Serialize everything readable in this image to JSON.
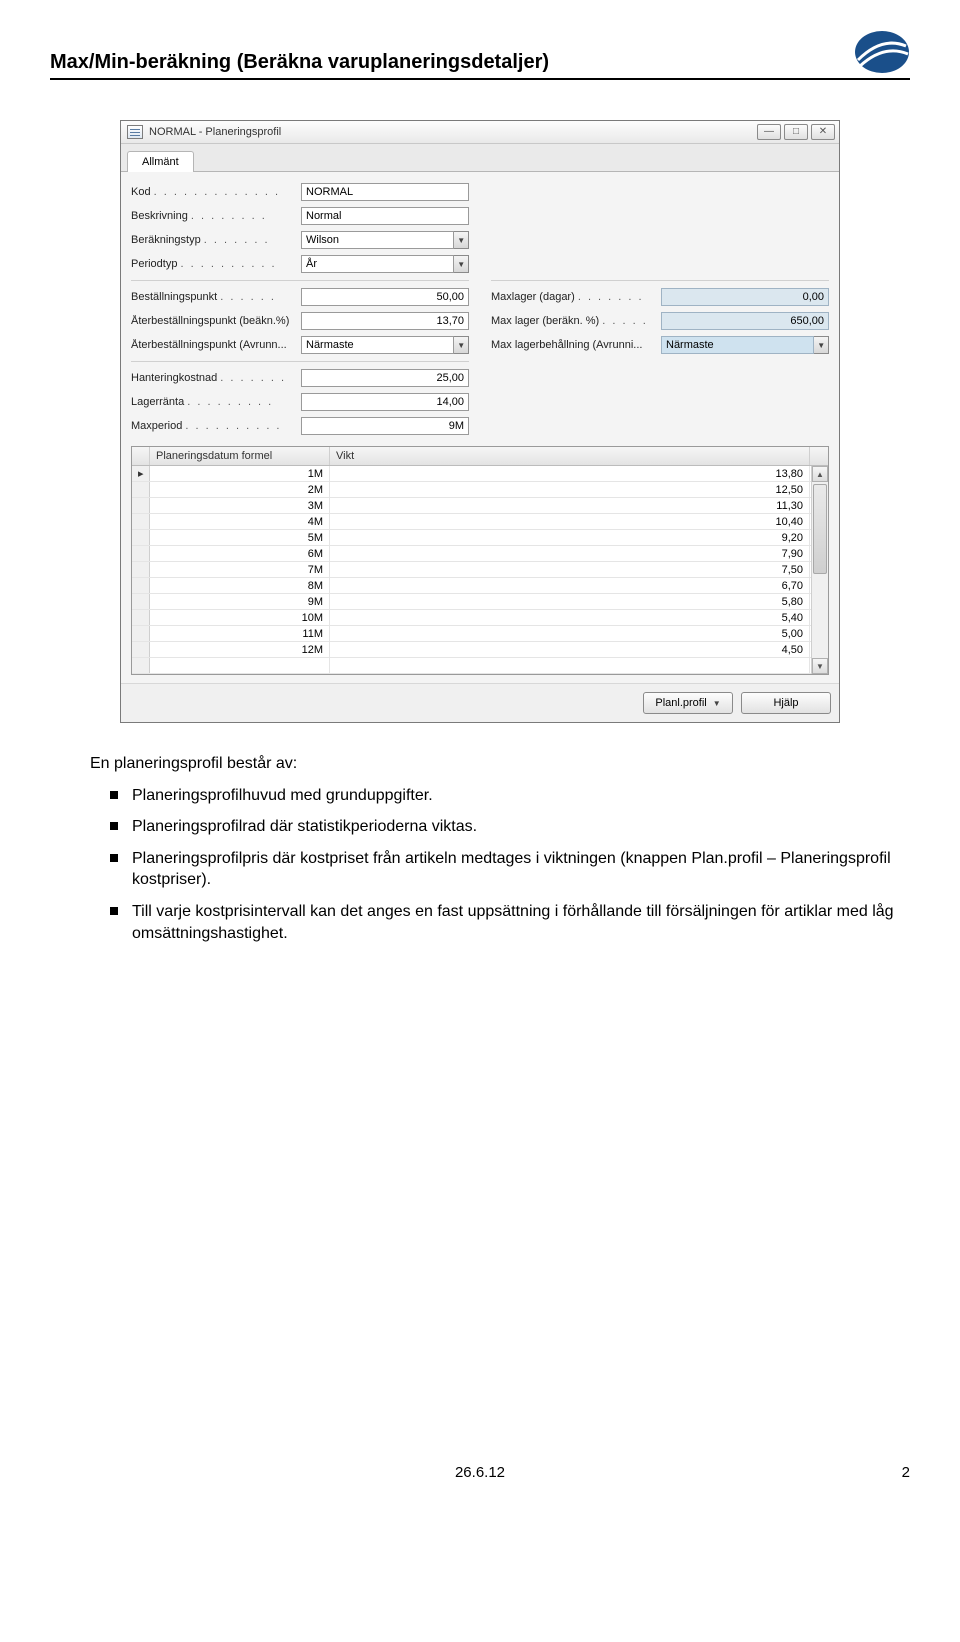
{
  "page": {
    "title": "Max/Min-beräkning (Beräkna varuplaneringsdetaljer)",
    "footer_date": "26.6.12",
    "footer_pagenum": "2"
  },
  "logo": {
    "ellipse_fill": "#1a4f8a",
    "swoosh_stroke": "#ffffff"
  },
  "window": {
    "title": "NORMAL - Planeringsprofil",
    "controls": {
      "min": "—",
      "max": "□",
      "close": "✕"
    },
    "tab_label": "Allmänt",
    "left_fields": [
      {
        "label": "Kod",
        "dots": ". . . . . . . . . . . . .",
        "value": "NORMAL",
        "type": "text"
      },
      {
        "label": "Beskrivning",
        "dots": ". . . . . . . .",
        "value": "Normal",
        "type": "text"
      },
      {
        "label": "Beräkningstyp",
        "dots": ". . . . . . .",
        "value": "Wilson",
        "type": "select"
      },
      {
        "label": "Periodtyp",
        "dots": ". . . . . . . . . .",
        "value": "År",
        "type": "select"
      },
      {
        "label": "Beställningspunkt",
        "dots": ". . . . . .",
        "value": "50,00",
        "type": "text",
        "align": "right"
      },
      {
        "label": "Återbeställningspunkt (beäkn.%)",
        "dots": "",
        "value": "13,70",
        "type": "text",
        "align": "right"
      },
      {
        "label": "Återbeställningspunkt (Avrunn...",
        "dots": "",
        "value": "Närmaste",
        "type": "select"
      },
      {
        "label": "Hanteringkostnad",
        "dots": ". . . . . . .",
        "value": "25,00",
        "type": "text",
        "align": "right"
      },
      {
        "label": "Lagerränta",
        "dots": ". . . . . . . . .",
        "value": "14,00",
        "type": "text",
        "align": "right"
      },
      {
        "label": "Maxperiod",
        "dots": ". . . . . . . . . .",
        "value": "9M",
        "type": "text",
        "align": "right"
      }
    ],
    "right_fields": [
      {
        "label": "Maxlager (dagar)",
        "dots": ". . . . . . .",
        "value": "0,00",
        "type": "text",
        "align": "right",
        "readonly": true
      },
      {
        "label": "Max lager (beräkn. %)",
        "dots": ". . . . .",
        "value": "650,00",
        "type": "text",
        "align": "right",
        "readonly": true
      },
      {
        "label": "Max lagerbehållning (Avrunni...",
        "dots": "",
        "value": "Närmaste",
        "type": "select",
        "readonly": true
      }
    ],
    "right_start_index": 4,
    "grid": {
      "col1": "Planeringsdatum formel",
      "col2": "Vikt",
      "rows": [
        {
          "marker": "▸",
          "c1": "1M",
          "c2": "13,80"
        },
        {
          "marker": "",
          "c1": "2M",
          "c2": "12,50"
        },
        {
          "marker": "",
          "c1": "3M",
          "c2": "11,30"
        },
        {
          "marker": "",
          "c1": "4M",
          "c2": "10,40"
        },
        {
          "marker": "",
          "c1": "5M",
          "c2": "9,20"
        },
        {
          "marker": "",
          "c1": "6M",
          "c2": "7,90"
        },
        {
          "marker": "",
          "c1": "7M",
          "c2": "7,50"
        },
        {
          "marker": "",
          "c1": "8M",
          "c2": "6,70"
        },
        {
          "marker": "",
          "c1": "9M",
          "c2": "5,80"
        },
        {
          "marker": "",
          "c1": "10M",
          "c2": "5,40"
        },
        {
          "marker": "",
          "c1": "11M",
          "c2": "5,00"
        },
        {
          "marker": "",
          "c1": "12M",
          "c2": "4,50"
        },
        {
          "marker": "",
          "c1": "",
          "c2": ""
        }
      ]
    },
    "buttons": {
      "profile": "Planl.profil",
      "help": "Hjälp"
    }
  },
  "body": {
    "intro": "En planeringsprofil består av:",
    "bullets": [
      "Planeringsprofilhuvud med grunduppgifter.",
      "Planeringsprofilrad där statistikperioderna viktas.",
      "Planeringsprofilpris där kostpriset från artikeln medtages i viktningen (knappen Plan.profil – Planeringsprofil kostpriser).",
      "Till varje kostprisintervall kan det anges en fast uppsättning i förhållande till försäljningen för artiklar med låg omsättningshastighet."
    ]
  }
}
